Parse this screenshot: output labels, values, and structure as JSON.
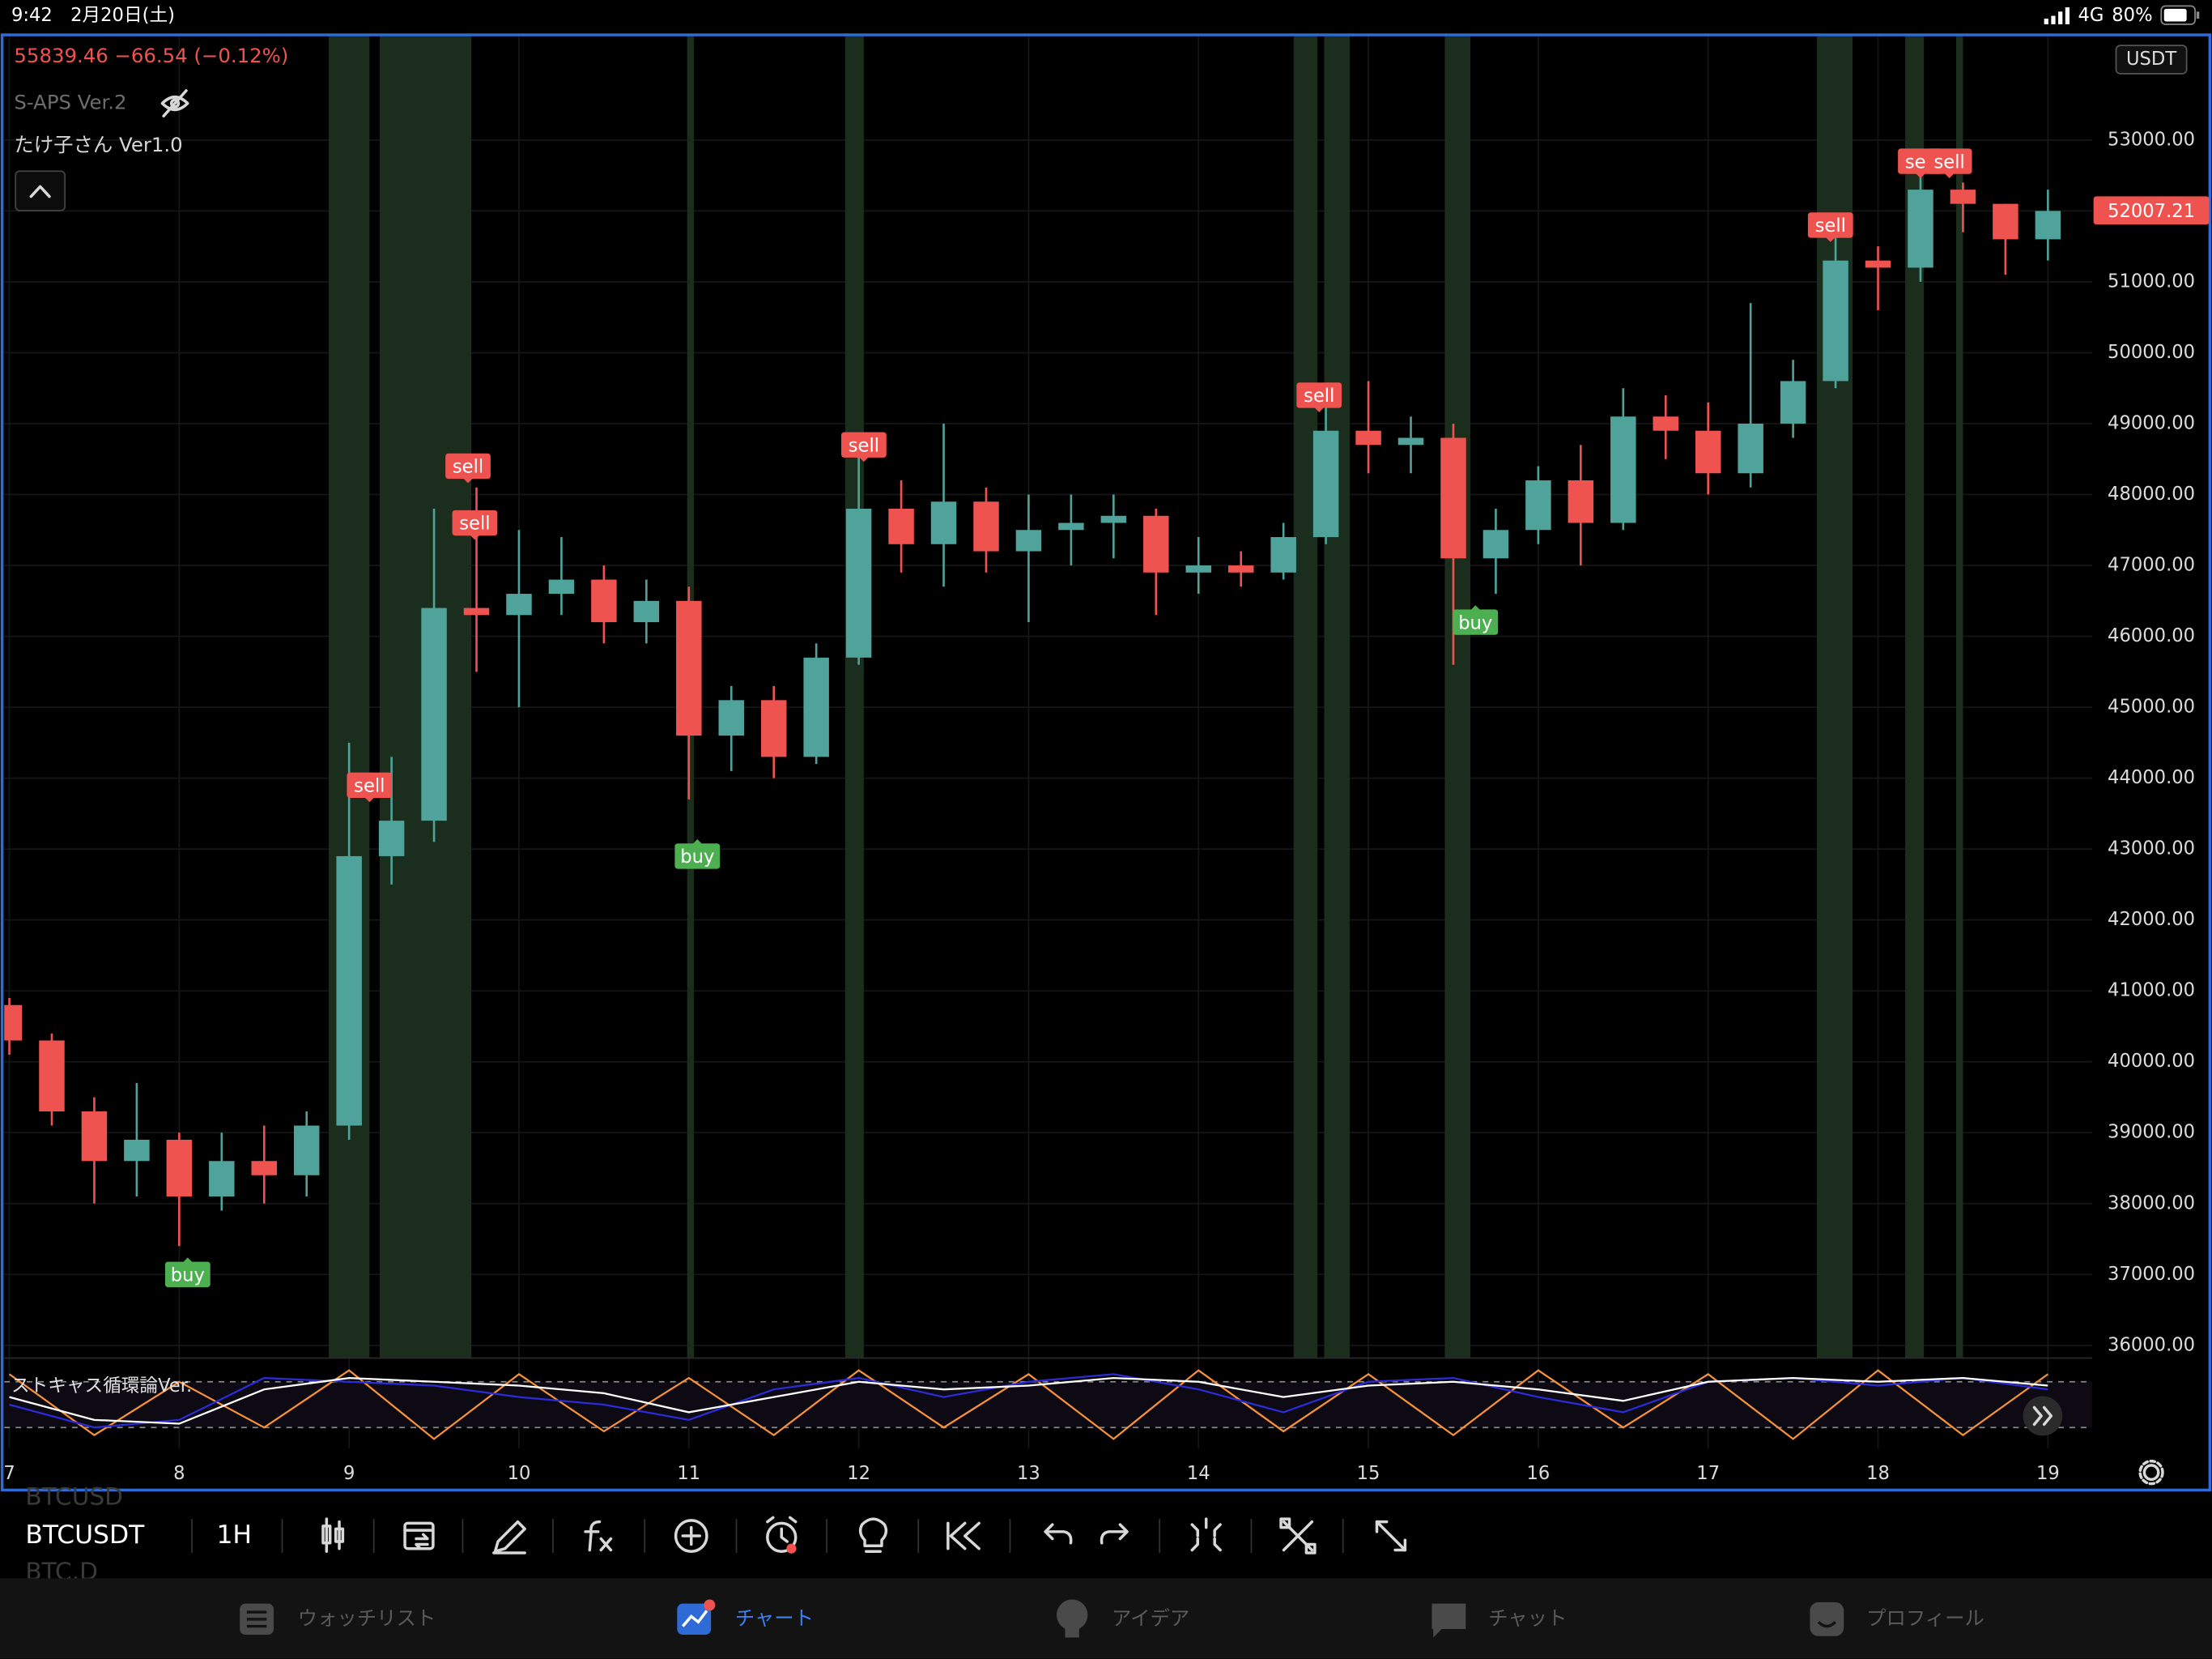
{
  "status_bar": {
    "time": "9:42",
    "date": "2月20日(土)",
    "network": "4G",
    "battery": "80%"
  },
  "legend": {
    "price_change": "55839.46  −66.54 (−0.12%)",
    "indicator_1": "S-APS Ver.2",
    "indicator_2": "たけ子さん Ver1.0",
    "indicator_3": "ストキャス循環論Ver."
  },
  "currency": "USDT",
  "last_price": 52007.21,
  "toolbar": {
    "symbol_above": "BTCUSD",
    "symbol": "BTCUSDT",
    "symbol_below": "BTC.D",
    "interval": "1H"
  },
  "tabs": [
    "ウォッチリスト",
    "チャート",
    "アイデア",
    "チャット",
    "プロフィール"
  ],
  "chart_data": [
    {
      "type": "candlestick",
      "up_color": "#4fa39a",
      "down_color": "#ef5350",
      "highlight_color": "#1b2e1d",
      "highlight_ranges": [
        [
          8.88,
          9.12
        ],
        [
          9.18,
          9.72
        ],
        [
          10.99,
          11.03
        ],
        [
          11.92,
          12.03
        ],
        [
          14.56,
          14.7
        ],
        [
          14.74,
          14.89
        ],
        [
          15.45,
          15.6
        ],
        [
          17.64,
          17.85
        ],
        [
          18.16,
          18.27
        ],
        [
          18.46,
          18.5
        ]
      ],
      "x": [
        7,
        7.25,
        7.5,
        7.75,
        8,
        8.25,
        8.5,
        8.75,
        9,
        9.25,
        9.5,
        9.75,
        10,
        10.25,
        10.5,
        10.75,
        11,
        11.25,
        11.5,
        11.75,
        12,
        12.25,
        12.5,
        12.75,
        13,
        13.25,
        13.5,
        13.75,
        14,
        14.25,
        14.5,
        14.75,
        15,
        15.25,
        15.5,
        15.75,
        16,
        16.25,
        16.5,
        16.75,
        17,
        17.25,
        17.5,
        17.75,
        18,
        18.25,
        18.5,
        18.75,
        19
      ],
      "open": [
        40800,
        40300,
        39300,
        38600,
        38900,
        38100,
        38600,
        38400,
        39100,
        42900,
        43400,
        46400,
        46300,
        46600,
        46800,
        46200,
        46500,
        44600,
        45100,
        44300,
        45700,
        47800,
        47300,
        47900,
        47200,
        47500,
        47600,
        47700,
        46900,
        47000,
        46900,
        47400,
        48900,
        48700,
        48800,
        47100,
        47500,
        48200,
        47600,
        49100,
        48900,
        48300,
        49000,
        49600,
        51300,
        51200,
        52300,
        52100,
        51600
      ],
      "high": [
        40900,
        40400,
        39500,
        39700,
        39000,
        39000,
        39100,
        39300,
        44500,
        44300,
        47800,
        48100,
        47500,
        47400,
        47000,
        46800,
        46700,
        45300,
        45300,
        45900,
        48600,
        48200,
        49000,
        48100,
        48000,
        48000,
        48000,
        47800,
        47400,
        47200,
        47600,
        49300,
        49600,
        49100,
        49000,
        47800,
        48400,
        48700,
        49500,
        49400,
        49300,
        50700,
        49900,
        51700,
        51500,
        52700,
        52400,
        52100,
        52300
      ],
      "low": [
        40100,
        39100,
        38000,
        38100,
        37400,
        37900,
        38000,
        38100,
        38900,
        42500,
        43100,
        45500,
        45000,
        46300,
        45900,
        45900,
        43700,
        44100,
        44000,
        44200,
        45600,
        46900,
        46700,
        46900,
        46200,
        47000,
        47100,
        46300,
        46600,
        46700,
        46800,
        47300,
        48300,
        48300,
        45600,
        46600,
        47300,
        47000,
        47500,
        48500,
        48000,
        48100,
        48800,
        49500,
        50600,
        51000,
        51700,
        51100,
        51300
      ],
      "close": [
        40300,
        39300,
        38600,
        38900,
        38100,
        38600,
        38400,
        39100,
        42900,
        43400,
        46400,
        46300,
        46600,
        46800,
        46200,
        46500,
        44600,
        45100,
        44300,
        45700,
        47800,
        47300,
        47900,
        47200,
        47500,
        47600,
        47700,
        46900,
        47000,
        46900,
        47400,
        48900,
        48700,
        48800,
        47100,
        47500,
        48200,
        47600,
        49100,
        48900,
        48300,
        49000,
        49600,
        51300,
        51200,
        52300,
        52100,
        51600,
        52000
      ],
      "signals": [
        {
          "label": "buy",
          "x": 8.05,
          "y": 37000,
          "color": "#4caf50"
        },
        {
          "label": "sell",
          "x": 9.12,
          "y": 43900,
          "color": "#ef5350"
        },
        {
          "label": "sell",
          "x": 9.7,
          "y": 48400,
          "color": "#ef5350"
        },
        {
          "label": "sell",
          "x": 9.74,
          "y": 47600,
          "color": "#ef5350"
        },
        {
          "label": "buy",
          "x": 11.05,
          "y": 42900,
          "color": "#4caf50"
        },
        {
          "label": "sell",
          "x": 12.03,
          "y": 48700,
          "color": "#ef5350"
        },
        {
          "label": "sell",
          "x": 14.71,
          "y": 49400,
          "color": "#ef5350"
        },
        {
          "label": "buy",
          "x": 15.63,
          "y": 46200,
          "color": "#4caf50"
        },
        {
          "label": "sell",
          "x": 17.72,
          "y": 51800,
          "color": "#ef5350"
        },
        {
          "label": "sell",
          "x": 18.25,
          "y": 52700,
          "color": "#ef5350"
        },
        {
          "label": "sell",
          "x": 18.42,
          "y": 52700,
          "color": "#ef5350"
        }
      ],
      "xlim": [
        6.97,
        19.26
      ],
      "ylim": [
        35821,
        54473
      ],
      "xticks": [
        7,
        8,
        9,
        10,
        11,
        12,
        13,
        14,
        15,
        16,
        17,
        18,
        19
      ],
      "yticks": [
        {
          "value": 36000,
          "label": "36000.00"
        },
        {
          "value": 37000,
          "label": "37000.00"
        },
        {
          "value": 38000,
          "label": "38000.00"
        },
        {
          "value": 39000,
          "label": "39000.00"
        },
        {
          "value": 40000,
          "label": "40000.00"
        },
        {
          "value": 41000,
          "label": "41000.00"
        },
        {
          "value": 42000,
          "label": "42000.00"
        },
        {
          "value": 43000,
          "label": "43000.00"
        },
        {
          "value": 44000,
          "label": "44000.00"
        },
        {
          "value": 45000,
          "label": "45000.00"
        },
        {
          "value": 46000,
          "label": "46000.00"
        },
        {
          "value": 47000,
          "label": "47000.00"
        },
        {
          "value": 48000,
          "label": "48000.00"
        },
        {
          "value": 49000,
          "label": "49000.00"
        },
        {
          "value": 50000,
          "label": "50000.00"
        },
        {
          "value": 51000,
          "label": "51000.00"
        },
        {
          "value": 52000,
          "label": "52000.00"
        },
        {
          "value": 53000,
          "label": "53000.00"
        }
      ],
      "grid": true
    },
    {
      "type": "line",
      "x": [
        7,
        7.5,
        8,
        8.5,
        9,
        9.5,
        10,
        10.5,
        11,
        11.5,
        12,
        12.5,
        13,
        13.5,
        14,
        14.5,
        15,
        15.5,
        16,
        16.5,
        17,
        17.5,
        18,
        18.5,
        19
      ],
      "series": [
        {
          "color": "#f7913a",
          "values": [
            90,
            10,
            80,
            20,
            95,
            5,
            90,
            15,
            85,
            10,
            95,
            20,
            90,
            5,
            95,
            15,
            90,
            10,
            95,
            20,
            90,
            5,
            95,
            10,
            90
          ]
        },
        {
          "color": "#2b2bd8",
          "values": [
            50,
            20,
            30,
            85,
            80,
            75,
            60,
            50,
            30,
            70,
            85,
            60,
            80,
            90,
            70,
            40,
            80,
            85,
            60,
            40,
            80,
            85,
            75,
            85,
            70
          ]
        },
        {
          "color": "#ffffff",
          "values": [
            60,
            30,
            25,
            70,
            85,
            80,
            75,
            65,
            40,
            60,
            80,
            70,
            75,
            85,
            80,
            60,
            75,
            80,
            70,
            55,
            80,
            85,
            80,
            85,
            75
          ]
        }
      ],
      "levels": [
        80,
        20
      ],
      "xlim": [
        6.97,
        19.26
      ],
      "ylim": [
        0,
        100
      ]
    }
  ]
}
